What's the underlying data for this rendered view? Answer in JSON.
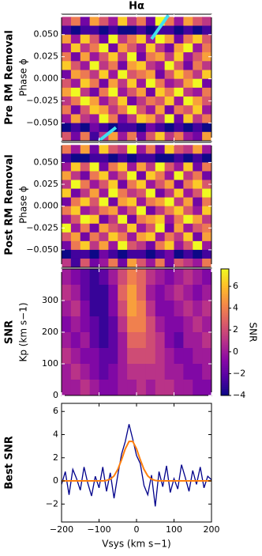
{
  "chart_data": [
    {
      "type": "heatmap",
      "title": "Hα",
      "row_label": "Pre RM Removal",
      "ylabel": "Phase ϕ",
      "colormap": "plasma",
      "zlim": [
        0,
        9
      ],
      "xlim": [
        -200,
        200
      ],
      "ylim": [
        -0.07,
        0.073
      ],
      "xticks": [
        {
          "value": -200,
          "label": "−200"
        },
        {
          "value": -100,
          "label": "−100"
        },
        0,
        100,
        200
      ],
      "yticks": [
        {
          "value": 0.05,
          "label": "0.050"
        },
        {
          "value": 0.025,
          "label": "0.025"
        },
        {
          "value": 0,
          "label": "0.000"
        },
        {
          "value": -0.025,
          "label": "−0.025"
        },
        {
          "value": -0.05,
          "label": "−0.050"
        }
      ],
      "x": [
        -187.5,
        -162.5,
        -137.5,
        -112.5,
        -87.5,
        -62.5,
        -37.5,
        -12.5,
        12.5,
        37.5,
        62.5,
        87.5,
        112.5,
        137.5,
        162.5,
        187.5
      ],
      "y": [
        0.065,
        0.055,
        0.045,
        0.035,
        0.025,
        0.015,
        0.005,
        -0.005,
        -0.015,
        -0.025,
        -0.035,
        -0.045,
        -0.055,
        -0.065
      ],
      "z": [
        [
          4,
          6,
          2,
          7,
          5,
          3,
          8,
          4,
          6,
          2,
          9,
          6,
          3,
          7,
          5,
          4
        ],
        [
          1,
          0,
          1,
          1,
          0,
          1,
          0,
          0,
          1,
          0,
          1,
          1,
          0,
          1,
          0,
          1
        ],
        [
          7,
          3,
          8,
          5,
          2,
          9,
          4,
          6,
          8,
          3,
          9,
          7,
          2,
          6,
          8,
          5
        ],
        [
          3,
          8,
          4,
          6,
          9,
          2,
          7,
          5,
          3,
          8,
          4,
          2,
          7,
          9,
          3,
          6
        ],
        [
          6,
          2,
          7,
          3,
          5,
          8,
          4,
          9,
          2,
          6,
          7,
          4,
          8,
          3,
          5,
          7
        ],
        [
          8,
          5,
          3,
          9,
          4,
          6,
          2,
          7,
          8,
          4,
          3,
          9,
          5,
          2,
          6,
          4
        ],
        [
          2,
          7,
          6,
          4,
          8,
          3,
          9,
          5,
          6,
          7,
          2,
          5,
          8,
          6,
          4,
          8
        ],
        [
          5,
          3,
          8,
          6,
          2,
          7,
          4,
          8,
          3,
          9,
          6,
          3,
          4,
          7,
          9,
          2
        ],
        [
          7,
          9,
          4,
          2,
          6,
          9,
          3,
          5,
          7,
          2,
          8,
          6,
          9,
          4,
          3,
          6
        ],
        [
          4,
          6,
          9,
          7,
          3,
          5,
          8,
          2,
          4,
          6,
          5,
          8,
          3,
          9,
          7,
          5
        ],
        [
          6,
          2,
          5,
          8,
          7,
          4,
          6,
          9,
          5,
          3,
          7,
          2,
          6,
          5,
          8,
          3
        ],
        [
          3,
          7,
          4,
          3,
          9,
          6,
          2,
          4,
          8,
          7,
          4,
          9,
          2,
          8,
          4,
          6
        ],
        [
          0,
          1,
          0,
          2,
          1,
          0,
          1,
          1,
          0,
          2,
          1,
          0,
          1,
          0,
          1,
          0
        ],
        [
          5,
          2,
          6,
          1,
          4,
          7,
          3,
          6,
          2,
          5,
          8,
          4,
          6,
          3,
          2,
          7
        ]
      ],
      "track": {
        "color": "#40e0f0",
        "x": [
          85,
          40,
          null,
          -55,
          -100
        ],
        "y": [
          0.072,
          0.045,
          null,
          -0.055,
          -0.07
        ]
      }
    },
    {
      "type": "heatmap",
      "row_label": "Post RM Removal",
      "ylabel": "Phase ϕ",
      "colormap": "plasma",
      "zlim": [
        0,
        9
      ],
      "xlim": [
        -200,
        200
      ],
      "ylim": [
        -0.07,
        0.073
      ],
      "xticks": [
        {
          "value": -200,
          "label": "−200"
        },
        {
          "value": -100,
          "label": "−100"
        },
        0,
        100,
        200
      ],
      "yticks": [
        {
          "value": 0.05,
          "label": "0.050"
        },
        {
          "value": 0.025,
          "label": "0.025"
        },
        {
          "value": 0,
          "label": "0.000"
        },
        {
          "value": -0.025,
          "label": "−0.025"
        },
        {
          "value": -0.05,
          "label": "−0.050"
        }
      ],
      "x": [
        -187.5,
        -162.5,
        -137.5,
        -112.5,
        -87.5,
        -62.5,
        -37.5,
        -12.5,
        12.5,
        37.5,
        62.5,
        87.5,
        112.5,
        137.5,
        162.5,
        187.5
      ],
      "y": [
        0.065,
        0.055,
        0.045,
        0.035,
        0.025,
        0.015,
        0.005,
        -0.005,
        -0.015,
        -0.025,
        -0.035,
        -0.045,
        -0.055,
        -0.065
      ],
      "z": [
        [
          6,
          3,
          7,
          2,
          8,
          5,
          4,
          9,
          3,
          6,
          2,
          8,
          5,
          4,
          7,
          3
        ],
        [
          1,
          0,
          0,
          1,
          1,
          0,
          1,
          0,
          1,
          1,
          0,
          0,
          1,
          0,
          1,
          0
        ],
        [
          3,
          8,
          5,
          9,
          2,
          6,
          8,
          3,
          7,
          4,
          9,
          5,
          3,
          8,
          2,
          6
        ],
        [
          7,
          4,
          2,
          6,
          8,
          3,
          5,
          9,
          2,
          8,
          6,
          3,
          9,
          4,
          6,
          2
        ],
        [
          4,
          9,
          6,
          3,
          5,
          8,
          2,
          6,
          8,
          3,
          5,
          7,
          2,
          6,
          8,
          5
        ],
        [
          8,
          2,
          4,
          7,
          3,
          9,
          6,
          4,
          5,
          9,
          2,
          4,
          8,
          3,
          5,
          9
        ],
        [
          2,
          6,
          8,
          5,
          9,
          2,
          7,
          8,
          3,
          6,
          7,
          9,
          4,
          7,
          2,
          6
        ],
        [
          6,
          8,
          3,
          4,
          6,
          7,
          3,
          5,
          9,
          2,
          4,
          6,
          8,
          5,
          3,
          8
        ],
        [
          3,
          5,
          9,
          8,
          2,
          4,
          9,
          2,
          6,
          7,
          8,
          3,
          6,
          9,
          7,
          4
        ],
        [
          9,
          3,
          6,
          2,
          7,
          5,
          4,
          8,
          3,
          5,
          9,
          2,
          7,
          3,
          5,
          6
        ],
        [
          5,
          7,
          2,
          6,
          4,
          8,
          6,
          3,
          7,
          8,
          3,
          6,
          4,
          8,
          2,
          7
        ],
        [
          2,
          6,
          8,
          4,
          7,
          3,
          9,
          5,
          4,
          2,
          6,
          8,
          3,
          5,
          9,
          3
        ],
        [
          0,
          1,
          1,
          0,
          2,
          1,
          0,
          1,
          1,
          0,
          1,
          2,
          0,
          1,
          0,
          1
        ],
        [
          4,
          1,
          5,
          2,
          3,
          6,
          2,
          7,
          5,
          3,
          6,
          2,
          5,
          4,
          3,
          6
        ]
      ]
    },
    {
      "type": "heatmap",
      "row_label": "SNR",
      "ylabel": "Kp (km s−1)",
      "colormap": "plasma",
      "zlim": [
        -4,
        7.6
      ],
      "xlim": [
        -200,
        200
      ],
      "ylim": [
        0,
        400
      ],
      "xticks": [
        {
          "value": -200,
          "label": "−200"
        },
        {
          "value": -100,
          "label": "−100"
        },
        0,
        100,
        200
      ],
      "yticks": [
        0,
        100,
        200,
        300
      ],
      "x": [
        -187.5,
        -162.5,
        -137.5,
        -112.5,
        -87.5,
        -62.5,
        -37.5,
        -12.5,
        12.5,
        37.5,
        62.5,
        87.5,
        112.5,
        137.5,
        162.5,
        187.5
      ],
      "y": [
        375,
        325,
        275,
        225,
        175,
        125,
        75,
        25
      ],
      "z": [
        [
          0,
          -1,
          -2,
          -3,
          -2,
          0,
          2,
          4,
          3,
          1,
          0,
          -1,
          0,
          1,
          0,
          -1
        ],
        [
          1,
          0,
          -2,
          -3,
          -3,
          -1,
          3,
          5,
          3,
          0,
          -1,
          0,
          1,
          0,
          -1,
          0
        ],
        [
          0,
          1,
          -1,
          -3,
          -3,
          -1,
          2,
          5,
          4,
          1,
          -1,
          -1,
          0,
          1,
          0,
          1
        ],
        [
          -1,
          0,
          -1,
          -2,
          -3,
          -2,
          1,
          4,
          4,
          2,
          0,
          -1,
          -1,
          0,
          1,
          0
        ],
        [
          0,
          -1,
          0,
          -2,
          -3,
          -2,
          0,
          3,
          3,
          2,
          1,
          -1,
          -2,
          0,
          0,
          1
        ],
        [
          1,
          0,
          -1,
          -1,
          -2,
          -2,
          0,
          2,
          2,
          2,
          1,
          0,
          -1,
          -1,
          0,
          0
        ],
        [
          0,
          1,
          0,
          -1,
          -2,
          -1,
          0,
          1,
          1,
          1,
          1,
          0,
          0,
          -1,
          -1,
          0
        ],
        [
          0,
          0,
          1,
          0,
          -1,
          -1,
          0,
          0,
          1,
          0,
          1,
          1,
          0,
          0,
          -1,
          -1
        ]
      ],
      "colorbar": {
        "label": "SNR",
        "ticks": [
          {
            "value": -4,
            "label": "−4"
          },
          {
            "value": -2,
            "label": "−2"
          },
          0,
          2,
          4,
          6
        ]
      }
    },
    {
      "type": "line",
      "row_label": "Best SNR",
      "xlabel": "Vsys (km s−1)",
      "xlim": [
        -200,
        200
      ],
      "ylim": [
        -3.55,
        6.7
      ],
      "xticks": [
        {
          "value": -200,
          "label": "−200"
        },
        {
          "value": -100,
          "label": "−100"
        },
        0,
        100,
        200
      ],
      "yticks": [
        {
          "value": -2,
          "label": "−2"
        },
        0,
        2,
        4,
        6
      ],
      "x": [
        -200,
        -190,
        -180,
        -170,
        -160,
        -150,
        -140,
        -130,
        -120,
        -110,
        -100,
        -90,
        -80,
        -70,
        -60,
        -50,
        -40,
        -30,
        -20,
        -10,
        0,
        10,
        20,
        30,
        40,
        50,
        60,
        70,
        80,
        90,
        100,
        110,
        120,
        130,
        140,
        150,
        160,
        170,
        180,
        190,
        200
      ],
      "series": [
        {
          "color": "#00008b",
          "values": [
            -0.3,
            0.8,
            -1.2,
            1.0,
            0.2,
            -0.8,
            1.2,
            -0.2,
            -1.3,
            0.4,
            -0.6,
            1.2,
            -0.9,
            0.7,
            -1.5,
            0.5,
            2.3,
            3.4,
            4.9,
            3.6,
            2.2,
            1.5,
            -0.4,
            -1.2,
            0.5,
            -2.2,
            0.8,
            -0.5,
            1.3,
            -1.0,
            0.2,
            -0.7,
            1.4,
            0.3,
            -0.9,
            0.9,
            -0.3,
            1.2,
            -0.6,
            0.4,
            0.1
          ]
        },
        {
          "color": "#ff7f0e",
          "values": [
            0,
            0,
            0,
            0,
            0,
            0,
            0,
            0,
            0,
            0,
            0,
            0,
            0.04,
            0.15,
            0.43,
            0.99,
            1.83,
            2.77,
            3.41,
            3.41,
            2.77,
            1.83,
            0.99,
            0.43,
            0.15,
            0.04,
            0,
            0,
            0,
            0,
            0,
            0,
            0,
            0,
            0,
            0,
            0,
            0,
            0,
            0,
            0
          ]
        }
      ]
    }
  ]
}
